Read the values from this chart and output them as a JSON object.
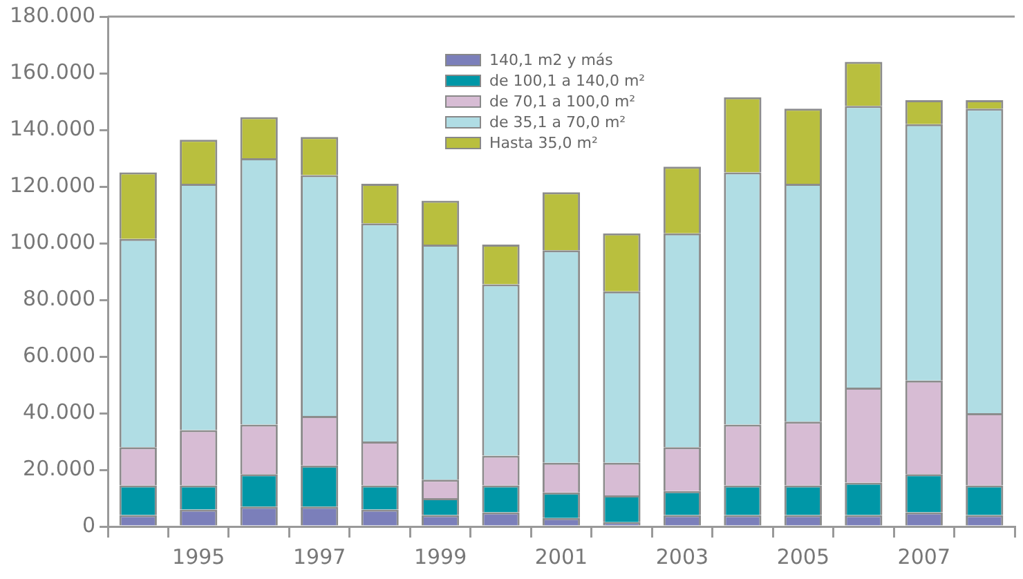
{
  "chart_data": {
    "type": "bar",
    "stacked": true,
    "categories": [
      null,
      "1995",
      null,
      "1997",
      null,
      "1999",
      null,
      "2001",
      null,
      "2003",
      null,
      "2005",
      null,
      "2007",
      null
    ],
    "series": [
      {
        "name": "140,1 m2 y más",
        "color": "#7b7fba",
        "values": [
          4000,
          6000,
          7000,
          7000,
          6000,
          4000,
          5000,
          3000,
          1500,
          4000,
          4000,
          4000,
          4000,
          5000,
          4000
        ]
      },
      {
        "name": "de 100,1 a 140,0 m²",
        "color": "#0097a7",
        "values": [
          10500,
          8500,
          11500,
          14500,
          8500,
          6000,
          9500,
          9000,
          9500,
          8500,
          10500,
          10500,
          11500,
          13500,
          10500
        ]
      },
      {
        "name": "de 70,1 a 100,0 m²",
        "color": "#d7bcd4",
        "values": [
          13500,
          19500,
          17500,
          17500,
          15500,
          6500,
          10500,
          10500,
          11500,
          15500,
          21500,
          22500,
          33500,
          33000,
          25500
        ]
      },
      {
        "name": "de 35,1 a 70,0 m²",
        "color": "#b0dde4",
        "values": [
          73500,
          87000,
          94000,
          85000,
          77000,
          83000,
          60500,
          75000,
          60500,
          75500,
          89000,
          84000,
          99500,
          90500,
          107500
        ]
      },
      {
        "name": "Hasta 35,0 m²",
        "color": "#b9bf3e",
        "values": [
          23500,
          15500,
          14500,
          13500,
          14000,
          15500,
          14000,
          20500,
          20500,
          23500,
          26500,
          26500,
          15500,
          8500,
          3000
        ]
      }
    ],
    "ylim": [
      0,
      180000
    ],
    "yticks": [
      {
        "value": 0,
        "label": "0"
      },
      {
        "value": 20000,
        "label": "20.000"
      },
      {
        "value": 40000,
        "label": "40.000"
      },
      {
        "value": 60000,
        "label": "60.000"
      },
      {
        "value": 80000,
        "label": "80.000"
      },
      {
        "value": 100000,
        "label": "100.000"
      },
      {
        "value": 120000,
        "label": "120.000"
      },
      {
        "value": 140000,
        "label": "140.000"
      },
      {
        "value": 160000,
        "label": "160.000"
      },
      {
        "value": 180000,
        "label": "180.000"
      }
    ],
    "grid": false,
    "legend": "top right"
  }
}
